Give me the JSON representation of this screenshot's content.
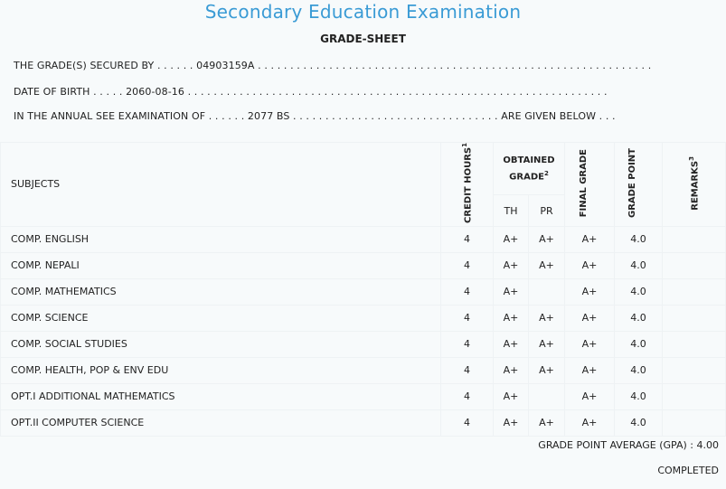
{
  "header": {
    "title": "Secondary Education Examination",
    "subtitle": "GRADE-SHEET"
  },
  "info": {
    "line1": "THE GRADE(S) SECURED BY . . . . . . 04903159A . . . . . . . . . . . . . . . . . . . . . . . . . . . . . . . . . . . . . . . . . . . . . . . . . . . . . . . . . . . . .",
    "line2": "DATE OF BIRTH . . . . . 2060-08-16 . . . . . . . . . . . . . . . . . . . . . . . . . . . . . . . . . . . . . . . . . . . . . . . . . . . . . . . . . . . . . . . . .",
    "line3": "IN THE ANNUAL SEE EXAMINATION OF . . . . . . 2077 BS . . . . . . . . . . . . . . . . . . . . . . . . . . . . . . . . ARE GIVEN BELOW . . ."
  },
  "table": {
    "headers": {
      "subjects": "SUBJECTS",
      "credit_hours": "CREDIT HOURS",
      "credit_sup": "1",
      "obtained_grade": "OBTAINED GRADE",
      "obtained_sup": "2",
      "th": "TH",
      "pr": "PR",
      "final_grade": "FINAL GRADE",
      "grade_point": "GRADE POINT",
      "remarks": "REMARKS",
      "remarks_sup": "3"
    },
    "rows": [
      {
        "subject": "COMP. ENGLISH",
        "credit": "4",
        "th": "A+",
        "pr": "A+",
        "final": "A+",
        "gp": "4.0",
        "remarks": ""
      },
      {
        "subject": "COMP. NEPALI",
        "credit": "4",
        "th": "A+",
        "pr": "A+",
        "final": "A+",
        "gp": "4.0",
        "remarks": ""
      },
      {
        "subject": "COMP. MATHEMATICS",
        "credit": "4",
        "th": "A+",
        "pr": "",
        "final": "A+",
        "gp": "4.0",
        "remarks": ""
      },
      {
        "subject": "COMP. SCIENCE",
        "credit": "4",
        "th": "A+",
        "pr": "A+",
        "final": "A+",
        "gp": "4.0",
        "remarks": ""
      },
      {
        "subject": "COMP. SOCIAL STUDIES",
        "credit": "4",
        "th": "A+",
        "pr": "A+",
        "final": "A+",
        "gp": "4.0",
        "remarks": ""
      },
      {
        "subject": "COMP. HEALTH, POP & ENV EDU",
        "credit": "4",
        "th": "A+",
        "pr": "A+",
        "final": "A+",
        "gp": "4.0",
        "remarks": ""
      },
      {
        "subject": "OPT.I ADDITIONAL MATHEMATICS",
        "credit": "4",
        "th": "A+",
        "pr": "",
        "final": "A+",
        "gp": "4.0",
        "remarks": ""
      },
      {
        "subject": "OPT.II COMPUTER SCIENCE",
        "credit": "4",
        "th": "A+",
        "pr": "A+",
        "final": "A+",
        "gp": "4.0",
        "remarks": ""
      }
    ]
  },
  "footer": {
    "gpa": "GRADE POINT AVERAGE (GPA) : 4.00",
    "status": "COMPLETED"
  },
  "colors": {
    "title": "#3a9bd5",
    "background": "#f7fafb",
    "text": "#222222"
  }
}
